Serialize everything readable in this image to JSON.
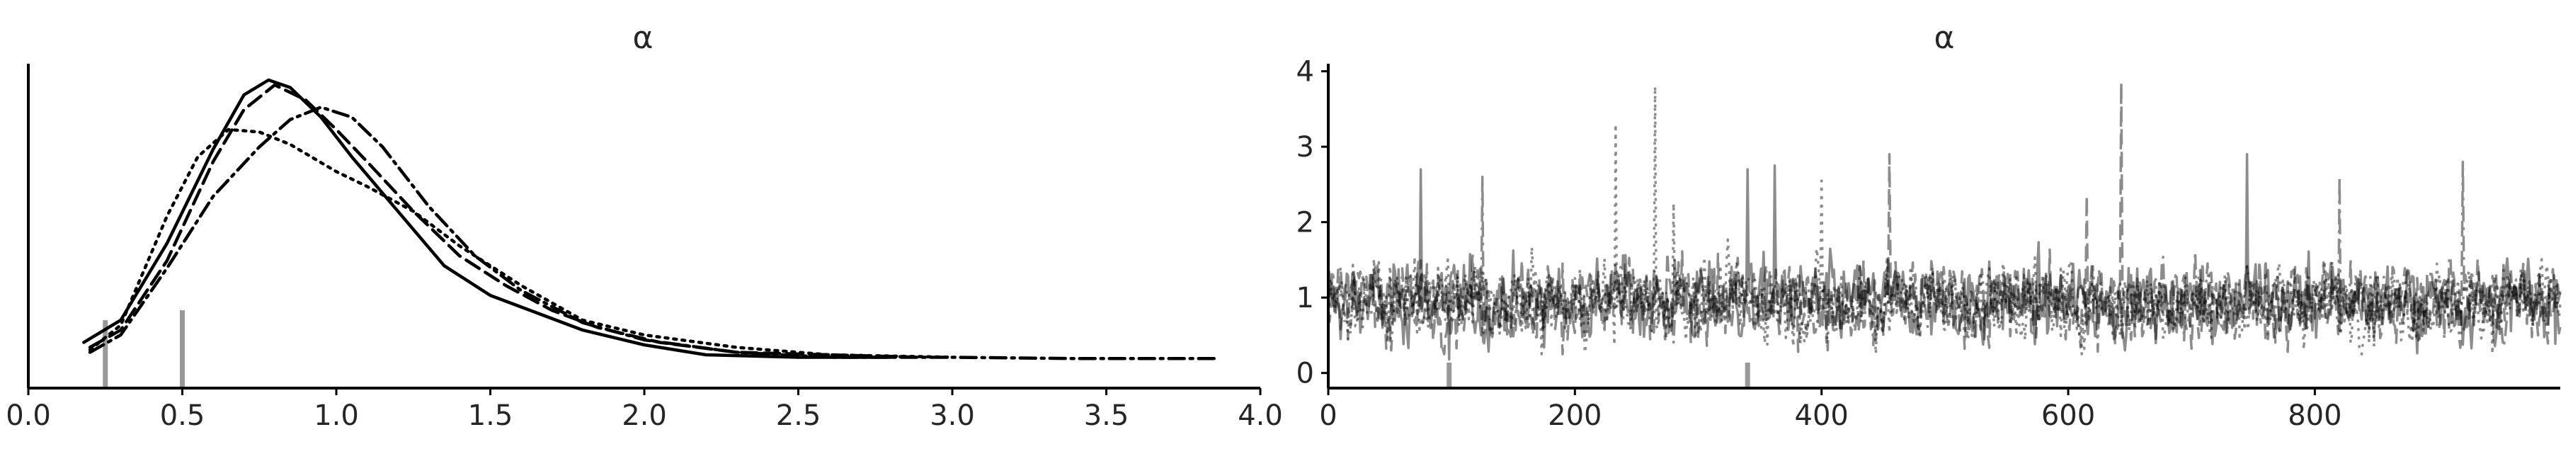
{
  "chart_data": [
    {
      "type": "line",
      "subtype": "kde",
      "title": "α",
      "xlabel": "",
      "ylabel": "",
      "xlim": [
        0,
        4
      ],
      "ylim": [
        0,
        1.15
      ],
      "xticks": [
        0.0,
        0.5,
        1.0,
        1.5,
        2.0,
        2.5,
        3.0,
        3.5,
        4.0
      ],
      "xtick_labels": [
        "0.0",
        "0.5",
        "1.0",
        "1.5",
        "2.0",
        "2.5",
        "3.0",
        "3.5",
        "4.0"
      ],
      "y_axis_ticks_shown": false,
      "grid": false,
      "line_color": "#000000",
      "rug_color": "#999999",
      "rug_marks": [
        {
          "x": 0.25,
          "height": 0.16
        },
        {
          "x": 0.5,
          "height": 0.2
        }
      ],
      "series": [
        {
          "line_style": "solid",
          "x": [
            0.18,
            0.3,
            0.45,
            0.6,
            0.7,
            0.78,
            0.85,
            0.95,
            1.05,
            1.2,
            1.35,
            1.5,
            1.65,
            1.8,
            2.0,
            2.2,
            2.5,
            2.8
          ],
          "y": [
            0.07,
            0.16,
            0.47,
            0.85,
            1.07,
            1.13,
            1.1,
            0.98,
            0.82,
            0.6,
            0.38,
            0.26,
            0.19,
            0.12,
            0.06,
            0.02,
            0.01,
            0.01
          ]
        },
        {
          "line_style": "dashed",
          "x": [
            0.2,
            0.3,
            0.45,
            0.6,
            0.7,
            0.8,
            0.9,
            1.0,
            1.1,
            1.25,
            1.4,
            1.55,
            1.7,
            1.85,
            2.05,
            2.3,
            2.6,
            2.9
          ],
          "y": [
            0.05,
            0.12,
            0.4,
            0.8,
            1.01,
            1.11,
            1.05,
            0.93,
            0.8,
            0.6,
            0.42,
            0.3,
            0.2,
            0.13,
            0.07,
            0.03,
            0.02,
            0.01
          ]
        },
        {
          "line_style": "dotted",
          "x": [
            0.2,
            0.3,
            0.45,
            0.55,
            0.65,
            0.75,
            0.85,
            1.0,
            1.1,
            1.25,
            1.4,
            1.6,
            1.8,
            2.0,
            2.3,
            2.6,
            3.0
          ],
          "y": [
            0.04,
            0.14,
            0.58,
            0.82,
            0.93,
            0.92,
            0.87,
            0.76,
            0.7,
            0.6,
            0.46,
            0.3,
            0.16,
            0.1,
            0.05,
            0.02,
            0.01
          ]
        },
        {
          "line_style": "dashdot",
          "x": [
            0.2,
            0.3,
            0.45,
            0.6,
            0.75,
            0.85,
            0.95,
            1.05,
            1.15,
            1.3,
            1.45,
            1.6,
            1.8,
            2.0,
            2.3,
            2.6,
            3.0,
            3.4,
            3.85
          ],
          "y": [
            0.03,
            0.1,
            0.37,
            0.66,
            0.86,
            0.97,
            1.02,
            0.98,
            0.86,
            0.62,
            0.42,
            0.28,
            0.15,
            0.08,
            0.03,
            0.01,
            0.01,
            0.005,
            0.005
          ]
        }
      ]
    },
    {
      "type": "line",
      "subtype": "trace",
      "title": "α",
      "xlabel": "",
      "ylabel": "",
      "xlim": [
        0,
        999
      ],
      "ylim": [
        -0.2,
        4.1
      ],
      "xticks": [
        0,
        200,
        400,
        600,
        800
      ],
      "xtick_labels": [
        "0",
        "200",
        "400",
        "600",
        "800"
      ],
      "yticks": [
        0,
        1,
        2,
        3,
        4
      ],
      "ytick_labels": [
        "0",
        "1",
        "2",
        "3",
        "4"
      ],
      "grid": false,
      "n_draws": 1000,
      "chain_color": "#000000",
      "chain_opacity": 0.45,
      "rug_color": "#999999",
      "rug_marks": [
        {
          "x": 98
        },
        {
          "x": 340
        }
      ],
      "chains": [
        {
          "line_style": "solid",
          "value_range": [
            0.2,
            2.9
          ],
          "peaks": [
            {
              "draw": 75,
              "value": 2.7
            },
            {
              "draw": 98,
              "value": 0.18
            },
            {
              "draw": 340,
              "value": 2.7
            },
            {
              "draw": 362,
              "value": 2.75
            },
            {
              "draw": 745,
              "value": 2.9
            }
          ]
        },
        {
          "line_style": "dashed",
          "value_range": [
            0.25,
            3.85
          ],
          "peaks": [
            {
              "draw": 643,
              "value": 3.85
            },
            {
              "draw": 455,
              "value": 2.9
            },
            {
              "draw": 615,
              "value": 2.35
            }
          ]
        },
        {
          "line_style": "dotted",
          "value_range": [
            0.25,
            3.8
          ],
          "peaks": [
            {
              "draw": 265,
              "value": 3.8
            },
            {
              "draw": 233,
              "value": 3.3
            },
            {
              "draw": 400,
              "value": 2.55
            },
            {
              "draw": 280,
              "value": 2.25
            }
          ]
        },
        {
          "line_style": "dashdot",
          "value_range": [
            0.2,
            2.85
          ],
          "peaks": [
            {
              "draw": 920,
              "value": 2.8
            },
            {
              "draw": 820,
              "value": 2.6
            },
            {
              "draw": 125,
              "value": 2.6
            }
          ]
        }
      ]
    }
  ]
}
